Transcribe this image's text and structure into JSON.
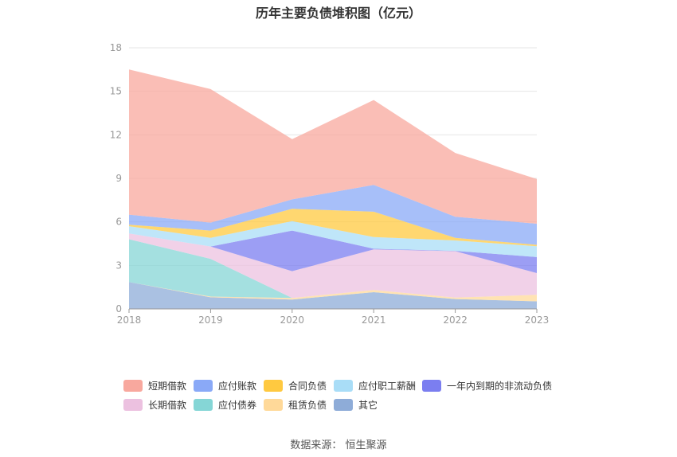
{
  "title": "历年主要负债堆积图（亿元）",
  "source": "数据来源：  恒生聚源",
  "chart_data": {
    "type": "area",
    "stacked": true,
    "title": "历年主要负债堆积图（亿元）",
    "x": [
      "2018",
      "2019",
      "2020",
      "2021",
      "2022",
      "2023"
    ],
    "yticks": [
      "0",
      "3",
      "6",
      "9",
      "12",
      "15",
      "18"
    ],
    "ylim": [
      0,
      18
    ],
    "grid": true,
    "legend_position": "bottom",
    "series": [
      {
        "name": "其它",
        "color": "#8eacd8",
        "values": [
          1.85,
          0.8,
          0.65,
          1.15,
          0.68,
          0.52
        ]
      },
      {
        "name": "租赁负债",
        "color": "#ffd999",
        "values": [
          0.0,
          0.05,
          0.1,
          0.15,
          0.1,
          0.45
        ]
      },
      {
        "name": "应付债券",
        "color": "#85d6d6",
        "values": [
          2.95,
          2.6,
          0.0,
          0.0,
          0.0,
          0.0
        ]
      },
      {
        "name": "长期借款",
        "color": "#ecc1e0",
        "values": [
          0.4,
          0.85,
          1.85,
          2.8,
          3.2,
          1.5
        ]
      },
      {
        "name": "一年内到期的非流动负债",
        "color": "#7b7ef0",
        "values": [
          0.0,
          0.0,
          2.8,
          0.05,
          0.02,
          1.1
        ]
      },
      {
        "name": "应付职工薪酬",
        "color": "#a9ddf7",
        "values": [
          0.5,
          0.6,
          0.65,
          0.8,
          0.72,
          0.75
        ]
      },
      {
        "name": "合同负债",
        "color": "#ffc940",
        "values": [
          0.1,
          0.5,
          0.85,
          1.75,
          0.18,
          0.1
        ]
      },
      {
        "name": "应付账款",
        "color": "#8aa9f7",
        "values": [
          0.7,
          0.55,
          0.65,
          1.85,
          1.45,
          1.45
        ]
      },
      {
        "name": "短期借款",
        "color": "#f8a89e",
        "values": [
          10.0,
          9.2,
          4.15,
          5.85,
          4.4,
          3.08
        ]
      }
    ]
  },
  "legend_rows": [
    [
      {
        "label": "短期借款",
        "color": "#f8a89e"
      },
      {
        "label": "应付账款",
        "color": "#8aa9f7"
      },
      {
        "label": "合同负债",
        "color": "#ffc940"
      },
      {
        "label": "应付职工薪酬",
        "color": "#a9ddf7"
      },
      {
        "label": "一年内到期的非流动负债",
        "color": "#7b7ef0"
      }
    ],
    [
      {
        "label": "长期借款",
        "color": "#ecc1e0"
      },
      {
        "label": "应付债券",
        "color": "#85d6d6"
      },
      {
        "label": "租赁负债",
        "color": "#ffd999"
      },
      {
        "label": "其它",
        "color": "#8eacd8"
      }
    ]
  ]
}
